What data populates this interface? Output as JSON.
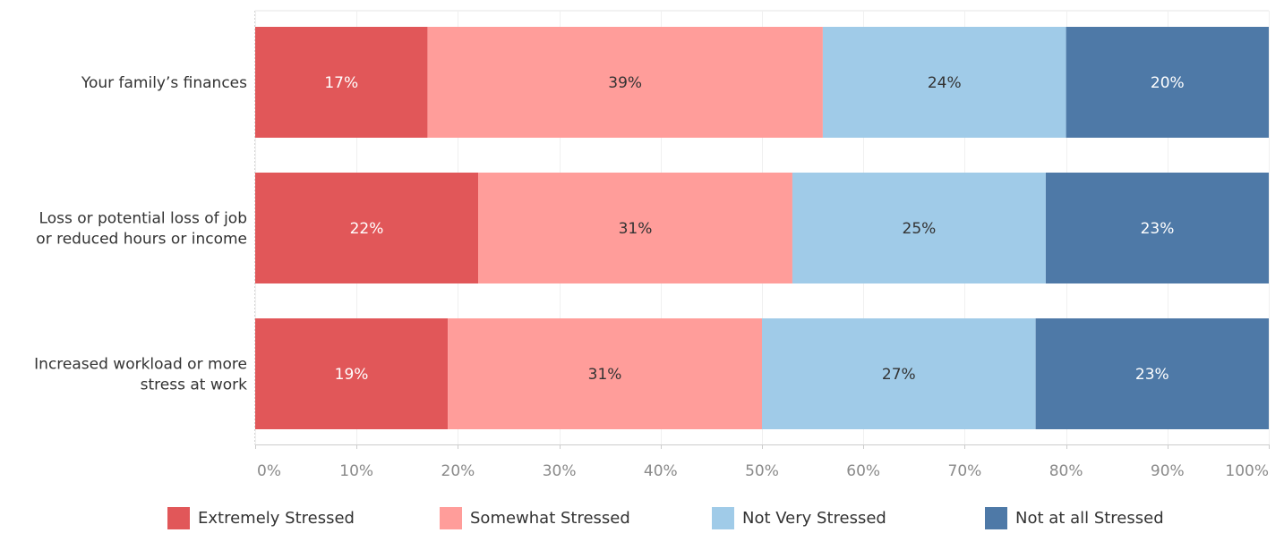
{
  "chart_data": {
    "type": "bar",
    "orientation": "horizontal",
    "stacked": true,
    "categories": [
      [
        "Your family’s finances"
      ],
      [
        "Loss or potential loss of job",
        "or reduced hours or income"
      ],
      [
        "Increased workload or more",
        "stress at work"
      ]
    ],
    "series": [
      {
        "name": "Extremely Stressed",
        "color": "#E15759",
        "label_color": "#FFFFFF",
        "values": [
          17,
          22,
          19
        ],
        "labels": [
          "17%",
          "22%",
          "19%"
        ]
      },
      {
        "name": "Somewhat Stressed",
        "color": "#FF9D9A",
        "label_color": "#333333",
        "values": [
          39,
          31,
          31
        ],
        "labels": [
          "39%",
          "31%",
          "31%"
        ]
      },
      {
        "name": "Not Very Stressed",
        "color": "#A0CBE8",
        "label_color": "#333333",
        "values": [
          24,
          25,
          27
        ],
        "labels": [
          "24%",
          "25%",
          "27%"
        ]
      },
      {
        "name": "Not at all Stressed",
        "color": "#4E79A7",
        "label_color": "#FFFFFF",
        "values": [
          20,
          23,
          23
        ],
        "labels": [
          "20%",
          "23%",
          "23%"
        ]
      }
    ],
    "xlim": [
      0,
      100
    ],
    "xticks": [
      "0%",
      "10%",
      "20%",
      "30%",
      "40%",
      "50%",
      "60%",
      "70%",
      "80%",
      "90%",
      "100%"
    ],
    "grid": true,
    "legend_position": "bottom",
    "xlabel": "",
    "ylabel": "",
    "title": ""
  }
}
